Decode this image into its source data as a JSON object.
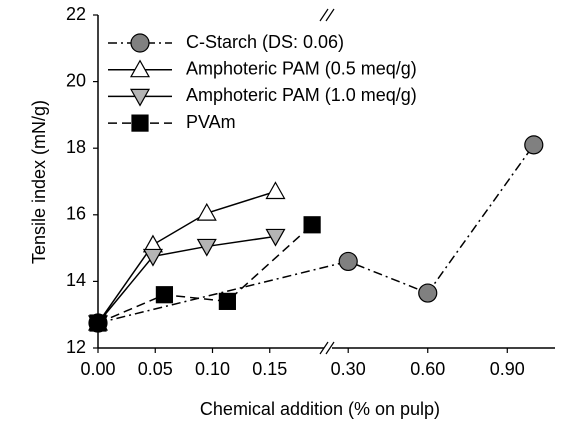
{
  "chart_data": {
    "type": "line",
    "x_label": "Chemical addition (% on pulp)",
    "y_label": "Tensile index (mN/g)",
    "xlim": [
      0,
      1.08
    ],
    "x_break": [
      0.2,
      0.22
    ],
    "xticks": [
      {
        "value": 0,
        "label": "0.00"
      },
      {
        "value": 0.05,
        "label": "0.05"
      },
      {
        "value": 0.1,
        "label": "0.10"
      },
      {
        "value": 0.15,
        "label": "0.15"
      },
      {
        "value": 0.3,
        "label": "0.30"
      },
      {
        "value": 0.6,
        "label": "0.60"
      },
      {
        "value": 0.9,
        "label": "0.90"
      }
    ],
    "ylim": [
      12,
      22
    ],
    "yticks": [
      12,
      14,
      16,
      18,
      20,
      22
    ],
    "legend": "upper left",
    "series": [
      {
        "name": "C-Starch (DS: 0.06)",
        "color": "#808080",
        "marker": "circle",
        "dash": "dash-dot",
        "x": [
          0,
          0.3,
          0.6,
          1.0
        ],
        "values": [
          12.75,
          14.6,
          13.65,
          18.1
        ]
      },
      {
        "name": "Amphoteric PAM (0.5 meq/g)",
        "color": "#ffffff",
        "marker": "triangle-up",
        "dash": "solid",
        "x": [
          0,
          0.048,
          0.095,
          0.155
        ],
        "values": [
          12.75,
          15.1,
          16.05,
          16.7
        ]
      },
      {
        "name": "Amphoteric PAM (1.0 meq/g)",
        "color": "#b4b4b4",
        "marker": "triangle-down",
        "dash": "solid",
        "x": [
          0,
          0.048,
          0.095,
          0.155
        ],
        "values": [
          12.75,
          14.75,
          15.05,
          15.35
        ]
      },
      {
        "name": "PVAm",
        "color": "#000000",
        "marker": "square",
        "dash": "dashed",
        "x": [
          0,
          0.058,
          0.113,
          0.187
        ],
        "values": [
          12.75,
          13.6,
          13.4,
          15.7
        ]
      }
    ]
  }
}
